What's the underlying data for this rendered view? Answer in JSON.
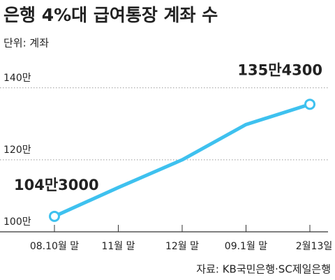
{
  "chart_data": {
    "type": "line",
    "title": "은행 4%대 급여통장 계좌 수",
    "subtitle": "단위: 계좌",
    "source": "자료: KB국민은행·SC제일은행",
    "categories": [
      "08.10월 말",
      "11월 말",
      "12월 말",
      "09.1월 말",
      "2월13일"
    ],
    "values": [
      1043000,
      1123000,
      1200000,
      1298000,
      1354300
    ],
    "value_labels": [
      "104만3000",
      null,
      null,
      null,
      "135만4300"
    ],
    "color": "#3ec1ef",
    "ylim": [
      1000000,
      1450000
    ],
    "yticks": [
      {
        "value": 1000000,
        "label": "100만"
      },
      {
        "value": 1200000,
        "label": "120만"
      },
      {
        "value": 1400000,
        "label": "140만"
      }
    ],
    "grid": true
  }
}
